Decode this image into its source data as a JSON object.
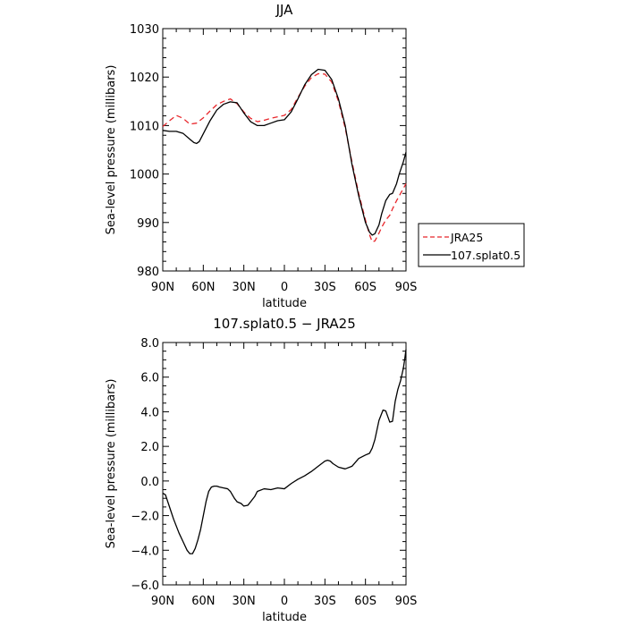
{
  "chart_data": [
    {
      "type": "line",
      "title": "JJA",
      "xlabel": "latitude",
      "ylabel": "Sea-level pressure (millibars)",
      "xlim": [
        -90,
        90
      ],
      "ylim": [
        980,
        1030
      ],
      "xticks": [
        -90,
        -60,
        -30,
        0,
        30,
        60,
        90
      ],
      "xtick_labels": [
        "90N",
        "60N",
        "30N",
        "0",
        "30S",
        "60S",
        "90S"
      ],
      "yticks": [
        980,
        990,
        1000,
        1010,
        1020,
        1030
      ],
      "ytick_labels": [
        "980",
        "990",
        "1000",
        "1010",
        "1020",
        "1030"
      ],
      "grid": false,
      "legend_position": "right",
      "series": [
        {
          "name": "JRA25",
          "color": "#e8262b",
          "dash": "dashed",
          "x": [
            -90,
            -85,
            -80,
            -75,
            -70,
            -65,
            -60,
            -55,
            -50,
            -45,
            -40,
            -35,
            -30,
            -25,
            -20,
            -15,
            -10,
            -5,
            0,
            5,
            10,
            15,
            20,
            25,
            30,
            35,
            40,
            45,
            50,
            55,
            60,
            63,
            65,
            67,
            70,
            72,
            75,
            78,
            80,
            83,
            85,
            88,
            90
          ],
          "values": [
            1009.8,
            1011.0,
            1012.1,
            1011.5,
            1010.3,
            1010.5,
            1011.6,
            1013.0,
            1014.3,
            1015.0,
            1015.5,
            1014.5,
            1012.8,
            1011.5,
            1010.8,
            1011.1,
            1011.5,
            1011.8,
            1012.1,
            1013.3,
            1015.8,
            1018.1,
            1019.9,
            1020.7,
            1020.6,
            1019.0,
            1015.0,
            1009.5,
            1002.5,
            996.0,
            990.5,
            987.5,
            986.0,
            986.2,
            987.8,
            989.0,
            990.5,
            991.5,
            992.8,
            994.5,
            995.5,
            997.0,
            998.0
          ]
        },
        {
          "name": "107.splat0.5",
          "color": "#000000",
          "dash": "solid",
          "x": [
            -90,
            -85,
            -80,
            -75,
            -70,
            -67,
            -65,
            -63,
            -60,
            -55,
            -50,
            -45,
            -40,
            -35,
            -30,
            -25,
            -20,
            -15,
            -10,
            -5,
            0,
            5,
            10,
            15,
            20,
            25,
            30,
            35,
            40,
            45,
            50,
            55,
            60,
            63,
            65,
            67,
            70,
            72,
            75,
            78,
            80,
            83,
            85,
            88,
            90
          ],
          "values": [
            1009.0,
            1008.8,
            1008.8,
            1008.4,
            1007.2,
            1006.5,
            1006.3,
            1006.7,
            1008.3,
            1011.0,
            1013.2,
            1014.4,
            1014.9,
            1014.7,
            1012.6,
            1010.8,
            1010.0,
            1010.0,
            1010.5,
            1011.0,
            1011.2,
            1012.8,
            1015.5,
            1018.4,
            1020.5,
            1021.6,
            1021.4,
            1019.5,
            1015.5,
            1010.0,
            1002.0,
            995.5,
            990.0,
            988.0,
            987.4,
            987.7,
            989.5,
            991.8,
            994.5,
            995.8,
            996.0,
            998.0,
            1000.0,
            1002.5,
            1004.5
          ]
        }
      ]
    },
    {
      "type": "line",
      "title": "107.splat0.5 − JRA25",
      "xlabel": "latitude",
      "ylabel": "Sea-level pressure (millibars)",
      "xlim": [
        -90,
        90
      ],
      "ylim": [
        -6,
        8
      ],
      "xticks": [
        -90,
        -60,
        -30,
        0,
        30,
        60,
        90
      ],
      "xtick_labels": [
        "90N",
        "60N",
        "30N",
        "0",
        "30S",
        "60S",
        "90S"
      ],
      "yticks": [
        -6,
        -4,
        -2,
        0,
        2,
        4,
        6,
        8
      ],
      "ytick_labels": [
        "−6.0",
        "−4.0",
        "−2.0",
        "0.0",
        "2.0",
        "4.0",
        "6.0",
        "8.0"
      ],
      "grid": false,
      "series": [
        {
          "color": "#000000",
          "dash": "solid",
          "x": [
            -90,
            -88,
            -85,
            -82,
            -80,
            -78,
            -75,
            -72,
            -70,
            -68,
            -66,
            -64,
            -62,
            -60,
            -58,
            -56,
            -54,
            -52,
            -50,
            -48,
            -45,
            -42,
            -40,
            -37,
            -35,
            -32,
            -30,
            -27,
            -25,
            -22,
            -20,
            -15,
            -10,
            -5,
            0,
            5,
            10,
            15,
            20,
            25,
            30,
            32,
            34,
            36,
            40,
            45,
            50,
            55,
            60,
            63,
            65,
            67,
            70,
            73,
            75,
            78,
            80,
            82,
            84,
            86,
            88,
            89,
            90
          ],
          "values": [
            -0.7,
            -0.8,
            -1.5,
            -2.2,
            -2.6,
            -3.0,
            -3.5,
            -4.0,
            -4.2,
            -4.2,
            -3.9,
            -3.4,
            -2.8,
            -2.0,
            -1.2,
            -0.6,
            -0.35,
            -0.3,
            -0.3,
            -0.35,
            -0.4,
            -0.45,
            -0.6,
            -1.0,
            -1.2,
            -1.3,
            -1.45,
            -1.4,
            -1.2,
            -0.9,
            -0.6,
            -0.45,
            -0.5,
            -0.4,
            -0.45,
            -0.15,
            0.1,
            0.3,
            0.55,
            0.85,
            1.15,
            1.2,
            1.15,
            1.0,
            0.8,
            0.7,
            0.85,
            1.3,
            1.5,
            1.6,
            1.9,
            2.4,
            3.5,
            4.1,
            4.05,
            3.4,
            3.45,
            4.6,
            5.3,
            5.8,
            6.5,
            7.0,
            7.6
          ]
        }
      ]
    }
  ]
}
